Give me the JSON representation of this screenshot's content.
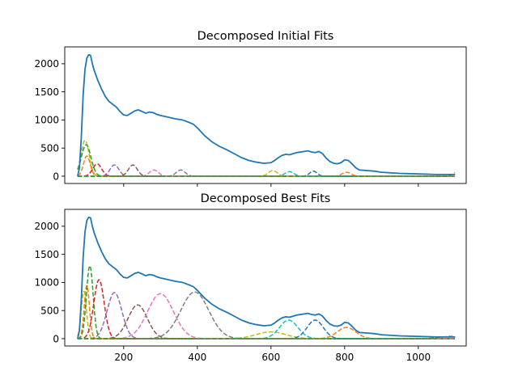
{
  "chart_data": [
    {
      "type": "line",
      "title": "Decomposed Initial Fits",
      "xlabel": "",
      "ylabel": "",
      "xlim": [
        40,
        1130
      ],
      "ylim": [
        -130,
        2300
      ],
      "xticks": [
        200,
        400,
        600,
        800,
        1000
      ],
      "xtick_labels_visible": false,
      "yticks": [
        0,
        500,
        1000,
        1500,
        2000
      ],
      "ytick_labels": [
        "0",
        "500",
        "1000",
        "1500",
        "2000"
      ],
      "grid": false,
      "legend": "none",
      "spectrum": {
        "color": "#1f77b4",
        "x": [
          75,
          80,
          85,
          90,
          95,
          100,
          105,
          110,
          115,
          120,
          130,
          140,
          150,
          160,
          170,
          180,
          190,
          200,
          210,
          220,
          230,
          240,
          250,
          260,
          270,
          280,
          290,
          300,
          320,
          340,
          360,
          380,
          390,
          400,
          410,
          420,
          440,
          460,
          480,
          500,
          520,
          540,
          560,
          580,
          600,
          610,
          620,
          630,
          640,
          650,
          660,
          670,
          680,
          690,
          700,
          710,
          720,
          730,
          740,
          750,
          760,
          770,
          780,
          790,
          800,
          810,
          820,
          830,
          840,
          860,
          880,
          900,
          950,
          1000,
          1050,
          1080,
          1100
        ],
        "y": [
          0,
          150,
          700,
          1450,
          1900,
          2100,
          2160,
          2150,
          2000,
          1880,
          1700,
          1550,
          1420,
          1330,
          1280,
          1230,
          1150,
          1090,
          1080,
          1120,
          1160,
          1180,
          1150,
          1120,
          1140,
          1130,
          1100,
          1080,
          1050,
          1020,
          1000,
          950,
          920,
          860,
          790,
          720,
          610,
          530,
          470,
          400,
          330,
          280,
          250,
          230,
          240,
          280,
          330,
          370,
          390,
          380,
          400,
          420,
          430,
          440,
          450,
          430,
          420,
          440,
          400,
          320,
          260,
          230,
          220,
          240,
          290,
          280,
          220,
          150,
          110,
          100,
          90,
          70,
          50,
          40,
          30,
          30,
          30
        ]
      },
      "components": [
        {
          "color": "#bcbd22",
          "center": 95,
          "amplitude": 640,
          "width": 11
        },
        {
          "color": "#2ca02c",
          "center": 98,
          "amplitude": 560,
          "width": 13
        },
        {
          "color": "#ff7f0e",
          "center": 100,
          "amplitude": 360,
          "width": 9
        },
        {
          "color": "#d62728",
          "center": 128,
          "amplitude": 220,
          "width": 12
        },
        {
          "color": "#9467bd",
          "center": 175,
          "amplitude": 200,
          "width": 12
        },
        {
          "color": "#8c564b",
          "center": 225,
          "amplitude": 200,
          "width": 12
        },
        {
          "color": "#e377c2",
          "center": 282,
          "amplitude": 110,
          "width": 12
        },
        {
          "color": "#7f7f7f",
          "center": 355,
          "amplitude": 110,
          "width": 12
        },
        {
          "color": "#bcbd22",
          "center": 605,
          "amplitude": 100,
          "width": 12
        },
        {
          "color": "#17becf",
          "center": 650,
          "amplitude": 80,
          "width": 12
        },
        {
          "color": "#1f77b4",
          "center": 715,
          "amplitude": 90,
          "width": 10
        },
        {
          "color": "#ff7f0e",
          "center": 805,
          "amplitude": 70,
          "width": 12
        },
        {
          "color": "#2ca02c",
          "center": 1100,
          "amplitude": 60,
          "width": 8
        }
      ]
    },
    {
      "type": "line",
      "title": "Decomposed Best Fits",
      "xlabel": "",
      "ylabel": "",
      "xlim": [
        40,
        1130
      ],
      "ylim": [
        -130,
        2300
      ],
      "xticks": [
        200,
        400,
        600,
        800,
        1000
      ],
      "xtick_labels": [
        "200",
        "400",
        "600",
        "800",
        "1000"
      ],
      "yticks": [
        0,
        500,
        1000,
        1500,
        2000
      ],
      "ytick_labels": [
        "0",
        "500",
        "1000",
        "1500",
        "2000"
      ],
      "grid": false,
      "legend": "none",
      "spectrum": {
        "color": "#1f77b4",
        "x": [
          75,
          80,
          85,
          90,
          95,
          100,
          105,
          110,
          115,
          120,
          130,
          140,
          150,
          160,
          170,
          180,
          190,
          200,
          210,
          220,
          230,
          240,
          250,
          260,
          270,
          280,
          290,
          300,
          320,
          340,
          360,
          380,
          390,
          400,
          410,
          420,
          440,
          460,
          480,
          500,
          520,
          540,
          560,
          580,
          600,
          610,
          620,
          630,
          640,
          650,
          660,
          670,
          680,
          690,
          700,
          710,
          720,
          730,
          740,
          750,
          760,
          770,
          780,
          790,
          800,
          810,
          820,
          830,
          840,
          860,
          880,
          900,
          950,
          1000,
          1050,
          1080,
          1100
        ],
        "y": [
          0,
          150,
          700,
          1450,
          1900,
          2100,
          2160,
          2150,
          2000,
          1880,
          1700,
          1550,
          1420,
          1330,
          1280,
          1230,
          1150,
          1090,
          1080,
          1120,
          1160,
          1180,
          1150,
          1120,
          1140,
          1130,
          1100,
          1080,
          1050,
          1020,
          1000,
          950,
          920,
          860,
          790,
          720,
          610,
          530,
          470,
          400,
          330,
          280,
          250,
          230,
          240,
          280,
          330,
          370,
          390,
          380,
          400,
          420,
          430,
          440,
          450,
          430,
          420,
          440,
          400,
          320,
          260,
          230,
          220,
          240,
          290,
          280,
          220,
          150,
          110,
          100,
          90,
          70,
          50,
          40,
          30,
          30,
          30
        ]
      },
      "components": [
        {
          "color": "#bcbd22",
          "center": 92,
          "amplitude": 850,
          "width": 7
        },
        {
          "color": "#ff7f0e",
          "center": 100,
          "amplitude": 950,
          "width": 7
        },
        {
          "color": "#2ca02c",
          "center": 108,
          "amplitude": 1300,
          "width": 9
        },
        {
          "color": "#d62728",
          "center": 133,
          "amplitude": 1050,
          "width": 14
        },
        {
          "color": "#9467bd",
          "center": 175,
          "amplitude": 820,
          "width": 20
        },
        {
          "color": "#8c564b",
          "center": 238,
          "amplitude": 600,
          "width": 26
        },
        {
          "color": "#e377c2",
          "center": 300,
          "amplitude": 800,
          "width": 35
        },
        {
          "color": "#7f7f7f",
          "center": 393,
          "amplitude": 830,
          "width": 38
        },
        {
          "color": "#bcbd22",
          "center": 600,
          "amplitude": 120,
          "width": 40
        },
        {
          "color": "#17becf",
          "center": 648,
          "amplitude": 330,
          "width": 25
        },
        {
          "color": "#1f77b4",
          "center": 720,
          "amplitude": 330,
          "width": 22
        },
        {
          "color": "#ff7f0e",
          "center": 805,
          "amplitude": 200,
          "width": 25
        },
        {
          "color": "#2ca02c",
          "center": 1090,
          "amplitude": 40,
          "width": 30
        }
      ]
    }
  ]
}
